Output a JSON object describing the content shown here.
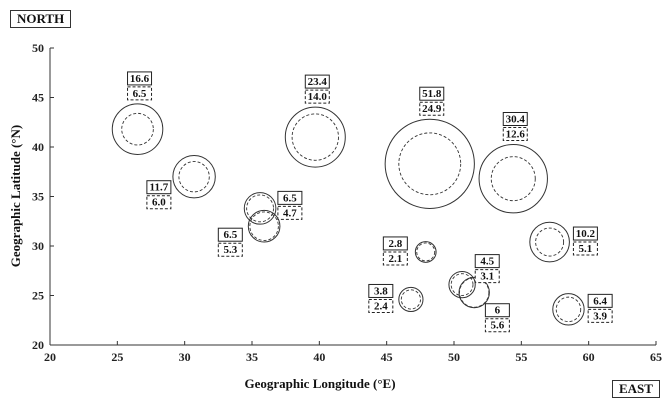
{
  "corner_labels": {
    "north": "NORTH",
    "east": "EAST"
  },
  "chart_data": {
    "type": "scatter",
    "xlabel": "Geographic Longitude (°E)",
    "ylabel": "Geographic Latitude (°N)",
    "xlim": [
      20,
      65
    ],
    "ylim": [
      20,
      50
    ],
    "xticks": [
      20,
      25,
      30,
      35,
      40,
      45,
      50,
      55,
      60,
      65
    ],
    "yticks": [
      20,
      25,
      30,
      35,
      40,
      45,
      50
    ],
    "grid": false,
    "points": [
      {
        "x": 26.5,
        "y": 41.8,
        "outer": 16.6,
        "inner": 6.5,
        "outer_label": "16.6",
        "inner_label": "6.5"
      },
      {
        "x": 30.7,
        "y": 37.0,
        "outer": 11.7,
        "inner": 6.0,
        "outer_label": "11.7",
        "inner_label": "6.0"
      },
      {
        "x": 39.7,
        "y": 41.0,
        "outer": 23.4,
        "inner": 14.0,
        "outer_label": "23.4",
        "inner_label": "14.0"
      },
      {
        "x": 35.6,
        "y": 33.8,
        "outer": 6.5,
        "inner": 4.7,
        "outer_label": "6.5",
        "inner_label": "4.7"
      },
      {
        "x": 35.9,
        "y": 32.0,
        "outer": 6.5,
        "inner": 5.3,
        "outer_label": "6.5",
        "inner_label": "5.3"
      },
      {
        "x": 48.2,
        "y": 38.3,
        "outer": 51.8,
        "inner": 24.9,
        "outer_label": "51.8",
        "inner_label": "24.9"
      },
      {
        "x": 54.4,
        "y": 36.8,
        "outer": 30.4,
        "inner": 12.6,
        "outer_label": "30.4",
        "inner_label": "12.6"
      },
      {
        "x": 47.9,
        "y": 29.4,
        "outer": 2.8,
        "inner": 2.1,
        "outer_label": "2.8",
        "inner_label": "2.1"
      },
      {
        "x": 57.1,
        "y": 30.4,
        "outer": 10.2,
        "inner": 5.1,
        "outer_label": "10.2",
        "inner_label": "5.1"
      },
      {
        "x": 46.8,
        "y": 24.6,
        "outer": 3.8,
        "inner": 2.4,
        "outer_label": "3.8",
        "inner_label": "2.4"
      },
      {
        "x": 50.6,
        "y": 26.1,
        "outer": 4.5,
        "inner": 3.1,
        "outer_label": "4.5",
        "inner_label": "3.1"
      },
      {
        "x": 51.5,
        "y": 25.3,
        "outer": 6.0,
        "inner": 5.6,
        "outer_label": "6",
        "inner_label": "5.6"
      },
      {
        "x": 58.5,
        "y": 23.6,
        "outer": 6.4,
        "inner": 3.9,
        "outer_label": "6.4",
        "inner_label": "3.9"
      }
    ]
  }
}
